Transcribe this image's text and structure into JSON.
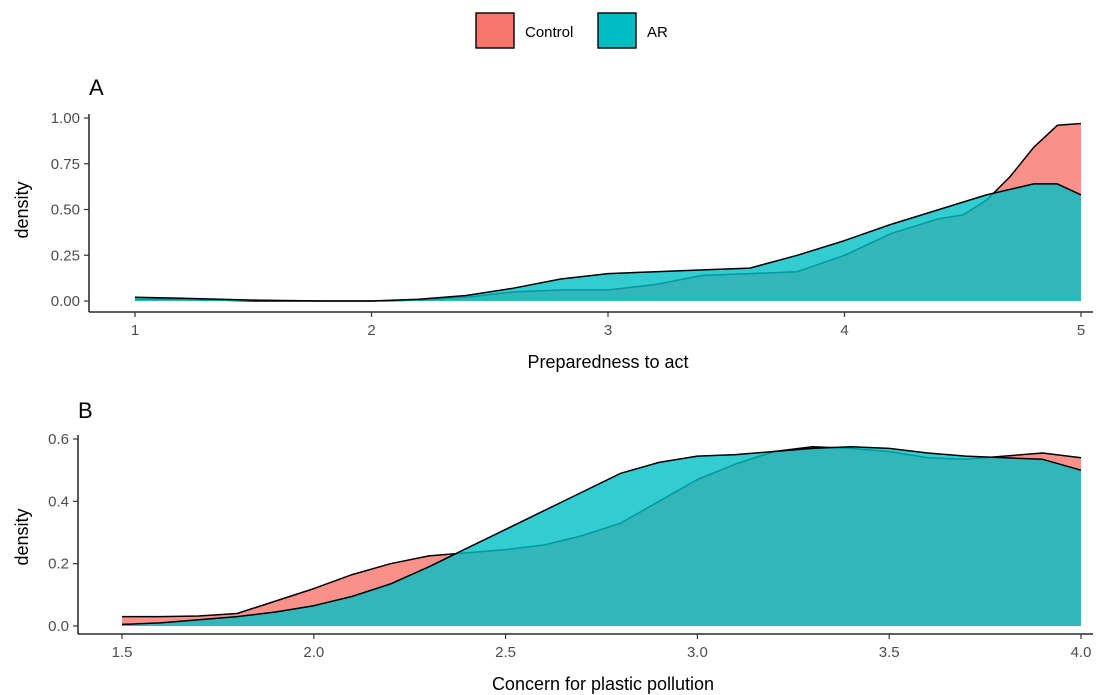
{
  "legend": {
    "items": [
      {
        "label": "Control",
        "color": "#F8766D"
      },
      {
        "label": "AR",
        "color": "#00BFC4"
      }
    ]
  },
  "chart_data": [
    {
      "type": "area",
      "panel_tag": "A",
      "xlabel": "Preparedness to act",
      "ylabel": "density",
      "xlim": [
        1,
        5
      ],
      "ylim": [
        0,
        1.0
      ],
      "x_ticks": [
        1,
        2,
        3,
        4,
        5
      ],
      "x_tick_labels": [
        "1",
        "2",
        "3",
        "4",
        "5"
      ],
      "y_ticks": [
        0,
        0.25,
        0.5,
        0.75,
        1.0
      ],
      "y_tick_labels": [
        "0.00",
        "0.25",
        "0.50",
        "0.75",
        "1.00"
      ],
      "grid": false,
      "legend_position": "top",
      "series": [
        {
          "name": "Control",
          "color": "#F8766D",
          "x": [
            1.0,
            1.2,
            1.5,
            1.8,
            2.0,
            2.2,
            2.4,
            2.6,
            2.8,
            3.0,
            3.2,
            3.4,
            3.6,
            3.8,
            4.0,
            4.2,
            4.4,
            4.5,
            4.6,
            4.7,
            4.8,
            4.9,
            5.0
          ],
          "y": [
            0.01,
            0.01,
            0.0,
            0.0,
            0.0,
            0.005,
            0.02,
            0.05,
            0.06,
            0.06,
            0.09,
            0.14,
            0.15,
            0.16,
            0.25,
            0.37,
            0.45,
            0.47,
            0.55,
            0.68,
            0.84,
            0.96,
            0.97
          ]
        },
        {
          "name": "AR",
          "color": "#00BFC4",
          "x": [
            1.0,
            1.2,
            1.5,
            1.8,
            2.0,
            2.2,
            2.4,
            2.6,
            2.8,
            3.0,
            3.2,
            3.4,
            3.6,
            3.8,
            4.0,
            4.2,
            4.4,
            4.6,
            4.8,
            4.9,
            5.0
          ],
          "y": [
            0.02,
            0.015,
            0.005,
            0.0,
            0.0,
            0.01,
            0.03,
            0.07,
            0.12,
            0.15,
            0.16,
            0.17,
            0.18,
            0.25,
            0.33,
            0.42,
            0.5,
            0.58,
            0.64,
            0.64,
            0.58
          ]
        }
      ]
    },
    {
      "type": "area",
      "panel_tag": "B",
      "xlabel": "Concern for plastic pollution",
      "ylabel": "density",
      "xlim": [
        1.5,
        4.0
      ],
      "ylim": [
        0,
        0.6
      ],
      "x_ticks": [
        1.5,
        2.0,
        2.5,
        3.0,
        3.5,
        4.0
      ],
      "x_tick_labels": [
        "1.5",
        "2.0",
        "2.5",
        "3.0",
        "3.5",
        "4.0"
      ],
      "y_ticks": [
        0,
        0.2,
        0.4,
        0.6
      ],
      "y_tick_labels": [
        "0.0",
        "0.2",
        "0.4",
        "0.6"
      ],
      "grid": false,
      "series": [
        {
          "name": "Control",
          "color": "#F8766D",
          "x": [
            1.5,
            1.6,
            1.7,
            1.8,
            1.9,
            2.0,
            2.1,
            2.2,
            2.3,
            2.4,
            2.5,
            2.6,
            2.7,
            2.8,
            2.9,
            3.0,
            3.1,
            3.2,
            3.3,
            3.4,
            3.5,
            3.6,
            3.7,
            3.8,
            3.9,
            4.0
          ],
          "y": [
            0.03,
            0.03,
            0.032,
            0.04,
            0.08,
            0.12,
            0.165,
            0.2,
            0.225,
            0.235,
            0.245,
            0.26,
            0.29,
            0.33,
            0.4,
            0.47,
            0.52,
            0.56,
            0.575,
            0.57,
            0.56,
            0.54,
            0.535,
            0.545,
            0.555,
            0.54
          ]
        },
        {
          "name": "AR",
          "color": "#00BFC4",
          "x": [
            1.5,
            1.6,
            1.7,
            1.8,
            1.9,
            2.0,
            2.1,
            2.2,
            2.3,
            2.4,
            2.5,
            2.6,
            2.7,
            2.8,
            2.9,
            3.0,
            3.1,
            3.2,
            3.3,
            3.4,
            3.5,
            3.6,
            3.7,
            3.8,
            3.9,
            4.0
          ],
          "y": [
            0.005,
            0.01,
            0.02,
            0.03,
            0.045,
            0.065,
            0.095,
            0.135,
            0.19,
            0.25,
            0.31,
            0.37,
            0.43,
            0.49,
            0.525,
            0.545,
            0.55,
            0.56,
            0.57,
            0.575,
            0.57,
            0.555,
            0.545,
            0.54,
            0.535,
            0.5
          ]
        }
      ]
    }
  ]
}
